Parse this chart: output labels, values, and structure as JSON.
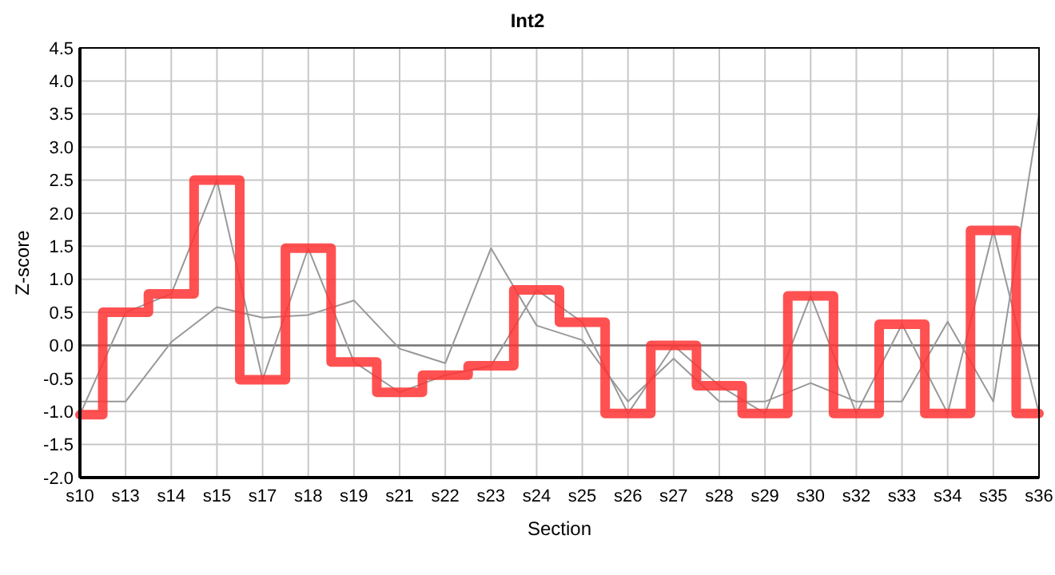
{
  "chart_data": {
    "type": "line",
    "title": "Int2",
    "xlabel": "Section",
    "ylabel": "Z-score",
    "categories": [
      "s10",
      "s13",
      "s14",
      "s15",
      "s17",
      "s18",
      "s19",
      "s21",
      "s22",
      "s23",
      "s24",
      "s25",
      "s26",
      "s27",
      "s28",
      "s29",
      "s30",
      "s32",
      "s33",
      "s34",
      "s35",
      "s36"
    ],
    "series": [
      {
        "color": "#999999",
        "values": [
          -0.85,
          -0.85,
          0.05,
          0.58,
          0.42,
          0.46,
          0.68,
          -0.05,
          -0.27,
          1.47,
          0.3,
          0.08,
          -0.85,
          -0.2,
          -0.85,
          -0.85,
          -0.57,
          -0.85,
          -0.85,
          0.36,
          -0.85,
          3.5
        ]
      },
      {
        "color": "#999999",
        "values": [
          -1.05,
          0.5,
          0.78,
          2.5,
          -0.52,
          1.47,
          -0.25,
          -0.71,
          -0.45,
          -0.31,
          0.84,
          0.35,
          -1.03,
          0.0,
          -0.61,
          -1.03,
          0.75,
          -1.03,
          0.32,
          -1.03,
          1.74,
          -1.03
        ]
      },
      {
        "type": "step",
        "color": "#ff3333",
        "values": [
          -1.05,
          0.5,
          0.78,
          2.5,
          -0.52,
          1.47,
          -0.25,
          -0.71,
          -0.45,
          -0.31,
          0.84,
          0.35,
          -1.03,
          0.0,
          -0.61,
          -1.03,
          0.75,
          -1.03,
          0.32,
          -1.03,
          1.74,
          -1.03
        ]
      }
    ],
    "ylim": [
      -2.0,
      4.5
    ],
    "yticks": [
      {
        "value": -2,
        "label": "-2.0"
      },
      {
        "value": -1.5,
        "label": "-1.5"
      },
      {
        "value": -1,
        "label": "-1.0"
      },
      {
        "value": -0.5,
        "label": "-0.5"
      },
      {
        "value": 0,
        "label": "0.0"
      },
      {
        "value": 0.5,
        "label": "0.5"
      },
      {
        "value": 1,
        "label": "1.0"
      },
      {
        "value": 1.5,
        "label": "1.5"
      },
      {
        "value": 2,
        "label": "2.0"
      },
      {
        "value": 2.5,
        "label": "2.5"
      },
      {
        "value": 3,
        "label": "3.0"
      },
      {
        "value": 3.5,
        "label": "3.5"
      },
      {
        "value": 4,
        "label": "4.0"
      },
      {
        "value": 4.5,
        "label": "4.5"
      }
    ],
    "ref_lines": [
      {
        "axis": "y",
        "value": 0,
        "color": "#777777"
      }
    ],
    "grid": true,
    "marker": "none",
    "line_style": "solid"
  }
}
